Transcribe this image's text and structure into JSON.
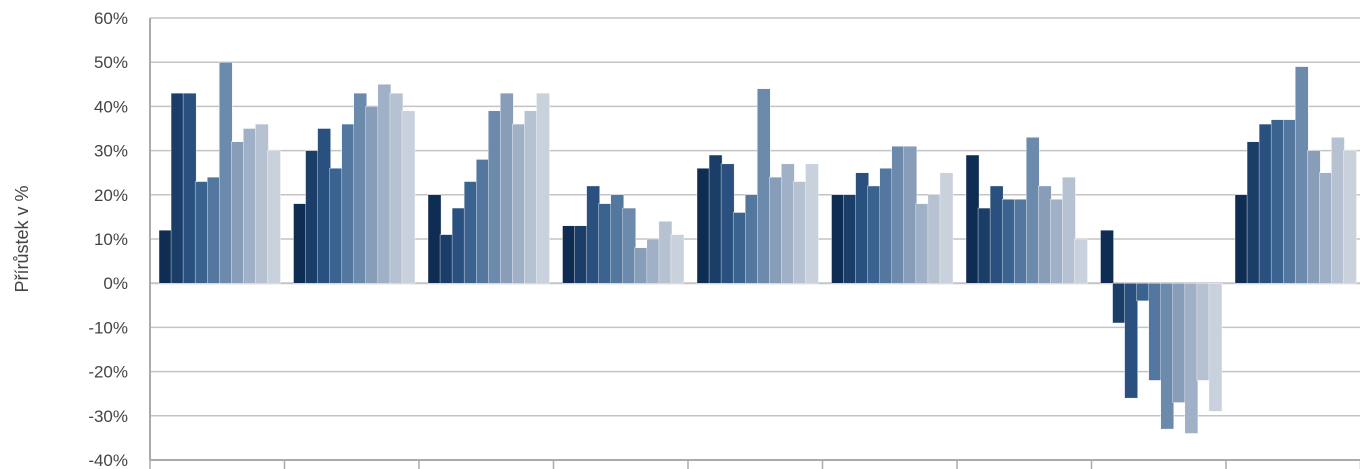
{
  "chart_data": {
    "type": "bar",
    "title": "",
    "xlabel": "",
    "ylabel": "Přírůstek v %",
    "ylim": [
      -40,
      60
    ],
    "y_tick_labels": [
      "60%",
      "50%",
      "40%",
      "30%",
      "20%",
      "10%",
      "0%",
      "-10%",
      "-20%",
      "-30%",
      "-40%"
    ],
    "grid": true,
    "legend": "none",
    "categories": [
      "",
      "",
      "",
      "",
      "",
      "",
      "",
      "",
      "",
      ""
    ],
    "groups": [
      {
        "values": [
          12,
          43,
          43,
          23,
          24,
          50,
          32,
          35,
          36,
          30
        ]
      },
      {
        "values": [
          18,
          30,
          35,
          26,
          36,
          43,
          40,
          45,
          43,
          39
        ]
      },
      {
        "values": [
          20,
          11,
          17,
          23,
          28,
          39,
          43,
          36,
          39,
          43
        ]
      },
      {
        "values": [
          13,
          13,
          22,
          18,
          20,
          17,
          8,
          10,
          14,
          11
        ]
      },
      {
        "values": [
          26,
          29,
          27,
          16,
          20,
          44,
          24,
          27,
          23,
          27
        ]
      },
      {
        "values": [
          20,
          20,
          25,
          22,
          26,
          31,
          31,
          18,
          20,
          25
        ]
      },
      {
        "values": [
          29,
          17,
          22,
          19,
          19,
          33,
          22,
          19,
          24,
          10
        ]
      },
      {
        "values": [
          12,
          -9,
          -26,
          -4,
          -22,
          -33,
          -27,
          -34,
          -22,
          -29
        ]
      },
      {
        "values": [
          20,
          32,
          36,
          37,
          37,
          49,
          30,
          25,
          33,
          30
        ]
      }
    ],
    "colors": {
      "gridline": "#c4c4c4",
      "axis": "#aaaaaa",
      "series_palette": [
        "#0f2d52",
        "#1b3e68",
        "#29507e",
        "#3b6390",
        "#53779f",
        "#6c8aab",
        "#879db8",
        "#a0b0c6",
        "#b6c2d2",
        "#c9d1dd"
      ]
    }
  }
}
